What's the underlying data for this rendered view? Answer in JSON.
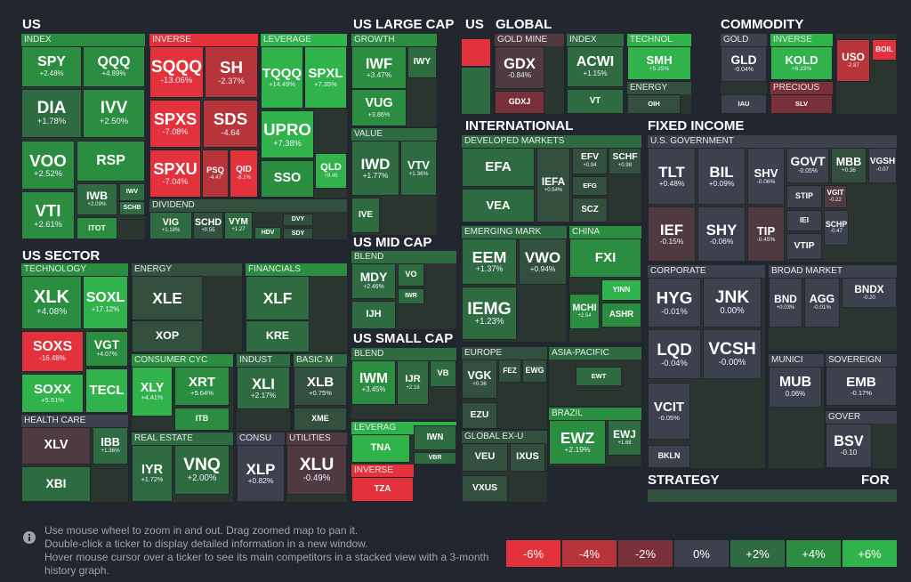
{
  "headings": [
    "US",
    "US LARGE CAP",
    "US",
    "GLOBAL",
    "COMMODITY",
    "INTERNATIONAL",
    "FIXED INCOME",
    "US SECTOR",
    "US MID CAP",
    "US SMALL CAP",
    "STRATEGY",
    "FOR"
  ],
  "groups": [
    {
      "title": "INDEX",
      "tiles": [
        {
          "ticker": "SPY",
          "change": "+2.48%"
        },
        {
          "ticker": "QQQ",
          "change": "+4.89%"
        },
        {
          "ticker": "DIA",
          "change": "+1.78%"
        },
        {
          "ticker": "IVV",
          "change": "+2.50%"
        },
        {
          "ticker": "VOO",
          "change": "+2.52%"
        },
        {
          "ticker": "RSP"
        },
        {
          "ticker": "VTI",
          "change": "+2.61%"
        },
        {
          "ticker": "IWB",
          "change": "+2.09%"
        },
        {
          "ticker": "IWV"
        },
        {
          "ticker": "SCHB"
        },
        {
          "ticker": "ITOT"
        }
      ]
    },
    {
      "title": "INVERSE",
      "tiles": [
        {
          "ticker": "SQQQ",
          "change": "-13.06%"
        },
        {
          "ticker": "SH",
          "change": "-2.37%"
        },
        {
          "ticker": "SPXS",
          "change": "-7.08%"
        },
        {
          "ticker": "SDS",
          "change": "-4.64"
        },
        {
          "ticker": "SPXU",
          "change": "-7.04%"
        },
        {
          "ticker": "PSQ",
          "change": "-4.47"
        },
        {
          "ticker": "QID",
          "change": "-8.1%"
        }
      ]
    },
    {
      "title": "LEVERAGE",
      "tiles": [
        {
          "ticker": "TQQQ",
          "change": "+14.49%"
        },
        {
          "ticker": "SPXL",
          "change": "+7.35%"
        },
        {
          "ticker": "UPRO",
          "change": "+7.38%"
        },
        {
          "ticker": "SSO"
        },
        {
          "ticker": "QLD",
          "change": "+9.45"
        }
      ]
    },
    {
      "title": "DIVIDEND",
      "tiles": [
        {
          "ticker": "VIG",
          "change": "+1.18%"
        },
        {
          "ticker": "SCHD",
          "change": "+0.55"
        },
        {
          "ticker": "VYM",
          "change": "+1.27"
        },
        {
          "ticker": "HDV"
        },
        {
          "ticker": "DVY"
        },
        {
          "ticker": "SDY"
        }
      ]
    },
    {
      "title": "TECHNOLOGY",
      "tiles": [
        {
          "ticker": "XLK",
          "change": "+4.08%"
        },
        {
          "ticker": "SOXL",
          "change": "+17.12%"
        },
        {
          "ticker": "SOXS",
          "change": "-16.48%"
        },
        {
          "ticker": "VGT",
          "change": "+4.07%"
        },
        {
          "ticker": "SOXX",
          "change": "+5.51%"
        },
        {
          "ticker": "TECL"
        }
      ]
    },
    {
      "title": "HEALTH CARE",
      "tiles": [
        {
          "ticker": "XLV"
        },
        {
          "ticker": "IBB",
          "change": "+1.36%"
        },
        {
          "ticker": "XBI"
        }
      ]
    },
    {
      "title": "ENERGY",
      "tiles": [
        {
          "ticker": "XLE"
        },
        {
          "ticker": "XOP"
        }
      ]
    },
    {
      "title": "FINANCIALS",
      "tiles": [
        {
          "ticker": "XLF"
        },
        {
          "ticker": "KRE"
        }
      ]
    },
    {
      "title": "CONSUMER CYC",
      "tiles": [
        {
          "ticker": "XLY",
          "change": "+4.41%"
        },
        {
          "ticker": "XRT",
          "change": "+5.64%"
        },
        {
          "ticker": "ITB"
        }
      ]
    },
    {
      "title": "INDUST",
      "tiles": [
        {
          "ticker": "XLI",
          "change": "+2.17%"
        }
      ]
    },
    {
      "title": "BASIC M",
      "tiles": [
        {
          "ticker": "XLB",
          "change": "+0.75%"
        },
        {
          "ticker": "XME"
        }
      ]
    },
    {
      "title": "REAL ESTATE",
      "tiles": [
        {
          "ticker": "IYR",
          "change": "+1.72%"
        },
        {
          "ticker": "VNQ",
          "change": "+2.00%"
        }
      ]
    },
    {
      "title": "CONSU",
      "tiles": [
        {
          "ticker": "XLP",
          "change": "+0.82%"
        }
      ]
    },
    {
      "title": "UTILITIES",
      "tiles": [
        {
          "ticker": "XLU",
          "change": "-0.49%"
        }
      ]
    },
    {
      "title": "GROWTH",
      "tiles": [
        {
          "ticker": "IWF",
          "change": "+3.47%"
        },
        {
          "ticker": "IWY"
        },
        {
          "ticker": "VUG",
          "change": "+3.86%"
        }
      ]
    },
    {
      "title": "VALUE",
      "tiles": [
        {
          "ticker": "IWD",
          "change": "+1.77%"
        },
        {
          "ticker": "VTV",
          "change": "+1.36%"
        },
        {
          "ticker": "IVE"
        }
      ]
    },
    {
      "title": "BLEND",
      "tiles": [
        {
          "ticker": "MDY",
          "change": "+2.46%"
        },
        {
          "ticker": "VO"
        },
        {
          "ticker": "IWR"
        },
        {
          "ticker": "IJH"
        }
      ]
    },
    {
      "title": "BLEND",
      "tiles": [
        {
          "ticker": "IWM",
          "change": "+3.45%"
        },
        {
          "ticker": "IJR",
          "change": "+2.18"
        },
        {
          "ticker": "VB"
        }
      ]
    },
    {
      "title": "LEVERAG",
      "tiles": [
        {
          "ticker": "TNA"
        },
        {
          "ticker": "IWN"
        },
        {
          "ticker": "VBR"
        }
      ]
    },
    {
      "title": "INVERSE",
      "tiles": [
        {
          "ticker": "TZA"
        }
      ]
    },
    {
      "title": "GOLD MINE",
      "tiles": [
        {
          "ticker": "GDX",
          "change": "-0.84%"
        },
        {
          "ticker": "GDXJ"
        }
      ]
    },
    {
      "title": "INDEX",
      "tiles": [
        {
          "ticker": "ACWI",
          "change": "+1.15%"
        },
        {
          "ticker": "VT"
        }
      ]
    },
    {
      "title": "TECHNOL",
      "tiles": [
        {
          "ticker": "SMH",
          "change": "+5.25%"
        }
      ]
    },
    {
      "title": "ENERGY",
      "tiles": [
        {
          "ticker": "OIH"
        }
      ]
    },
    {
      "title": "DEVELOPED MARKETS",
      "tiles": [
        {
          "ticker": "EFA"
        },
        {
          "ticker": "VEA"
        },
        {
          "ticker": "IEFA",
          "change": "+0.54%"
        },
        {
          "ticker": "EFV",
          "change": "+0.94"
        },
        {
          "ticker": "SCHF",
          "change": "+0.98"
        },
        {
          "ticker": "EFG"
        },
        {
          "ticker": "SCZ"
        }
      ]
    },
    {
      "title": "EMERGING MARK",
      "tiles": [
        {
          "ticker": "EEM",
          "change": "+1.37%"
        },
        {
          "ticker": "VWO",
          "change": "+0.94%"
        },
        {
          "ticker": "IEMG",
          "change": "+1.23%"
        }
      ]
    },
    {
      "title": "CHINA",
      "tiles": [
        {
          "ticker": "FXI"
        },
        {
          "ticker": "YINN"
        },
        {
          "ticker": "MCHI",
          "change": "+2.54"
        },
        {
          "ticker": "ASHR"
        }
      ]
    },
    {
      "title": "EUROPE",
      "tiles": [
        {
          "ticker": "VGK",
          "change": "+0.36"
        },
        {
          "ticker": "FEZ"
        },
        {
          "ticker": "EWG"
        },
        {
          "ticker": "EZU"
        }
      ]
    },
    {
      "title": "ASIA-PACIFIC",
      "tiles": [
        {
          "ticker": "EWT"
        }
      ]
    },
    {
      "title": "GLOBAL EX-U",
      "tiles": [
        {
          "ticker": "VEU"
        },
        {
          "ticker": "IXUS"
        },
        {
          "ticker": "VXUS"
        }
      ]
    },
    {
      "title": "BRAZIL",
      "tiles": [
        {
          "ticker": "EWZ",
          "change": "+2.19%"
        },
        {
          "ticker": "EWJ",
          "change": "+1.68"
        }
      ]
    },
    {
      "title": "GOLD",
      "tiles": [
        {
          "ticker": "GLD",
          "change": "-0.04%"
        },
        {
          "ticker": "IAU"
        }
      ]
    },
    {
      "title": "INVERSE",
      "tiles": [
        {
          "ticker": "KOLD",
          "change": "+6.23%"
        }
      ]
    },
    {
      "title": "PRECIOUS",
      "tiles": [
        {
          "ticker": "SLV"
        }
      ]
    },
    {
      "tiles": [
        {
          "ticker": "USO",
          "change": "-2.87"
        },
        {
          "ticker": "BOIL"
        }
      ]
    },
    {
      "title": "U.S. GOVERNMENT",
      "tiles": [
        {
          "ticker": "TLT",
          "change": "+0.48%"
        },
        {
          "ticker": "BIL",
          "change": "+0.09%"
        },
        {
          "ticker": "SHV",
          "change": "-0.06%"
        },
        {
          "ticker": "GOVT",
          "change": "-0.05%"
        },
        {
          "ticker": "MBB",
          "change": "+0.36"
        },
        {
          "ticker": "VGSH",
          "change": "-0.07"
        },
        {
          "ticker": "STIP"
        },
        {
          "ticker": "VGIT",
          "change": "-0.22"
        },
        {
          "ticker": "IEF",
          "change": "-0.15%"
        },
        {
          "ticker": "SHY",
          "change": "-0.06%"
        },
        {
          "ticker": "TIP",
          "change": "-0.45%"
        },
        {
          "ticker": "IEI"
        },
        {
          "ticker": "VTIP"
        },
        {
          "ticker": "SCHP",
          "change": "-0.47"
        }
      ]
    },
    {
      "title": "CORPORATE",
      "tiles": [
        {
          "ticker": "HYG",
          "change": "-0.01%"
        },
        {
          "ticker": "JNK",
          "change": "0.00%"
        },
        {
          "ticker": "LQD",
          "change": "-0.04%"
        },
        {
          "ticker": "VCSH",
          "change": "-0.00%"
        },
        {
          "ticker": "VCIT",
          "change": "-0.05%"
        },
        {
          "ticker": "BKLN"
        }
      ]
    },
    {
      "title": "BROAD MARKET",
      "tiles": [
        {
          "ticker": "BND",
          "change": "+0.03%"
        },
        {
          "ticker": "AGG",
          "change": "-0.01%"
        },
        {
          "ticker": "BNDX",
          "change": "-0.20"
        }
      ]
    },
    {
      "title": "MUNICI",
      "tiles": [
        {
          "ticker": "MUB",
          "change": "0.06%"
        }
      ]
    },
    {
      "title": "SOVEREIGN",
      "tiles": [
        {
          "ticker": "EMB",
          "change": "-0.17%"
        }
      ]
    },
    {
      "title": "GOVER",
      "tiles": [
        {
          "ticker": "BSV",
          "change": "-0.10"
        }
      ]
    }
  ],
  "instructions": [
    "Use mouse wheel to zoom in and out. Drag zoomed map to pan it.",
    "Double-click a ticker to display detailed information in a new window.",
    "Hover mouse cursor over a ticker to see its main competitors in a stacked view with a 3-month history graph."
  ],
  "legend": [
    {
      "label": "-6%",
      "color": "#e3323b"
    },
    {
      "label": "-4%",
      "color": "#b8343b"
    },
    {
      "label": "-2%",
      "color": "#7a3038"
    },
    {
      "label": "0%",
      "color": "#3c414d"
    },
    {
      "label": "+2%",
      "color": "#2f6b41"
    },
    {
      "label": "+4%",
      "color": "#2b8d3f"
    },
    {
      "label": "+6%",
      "color": "#2fb34a"
    }
  ]
}
